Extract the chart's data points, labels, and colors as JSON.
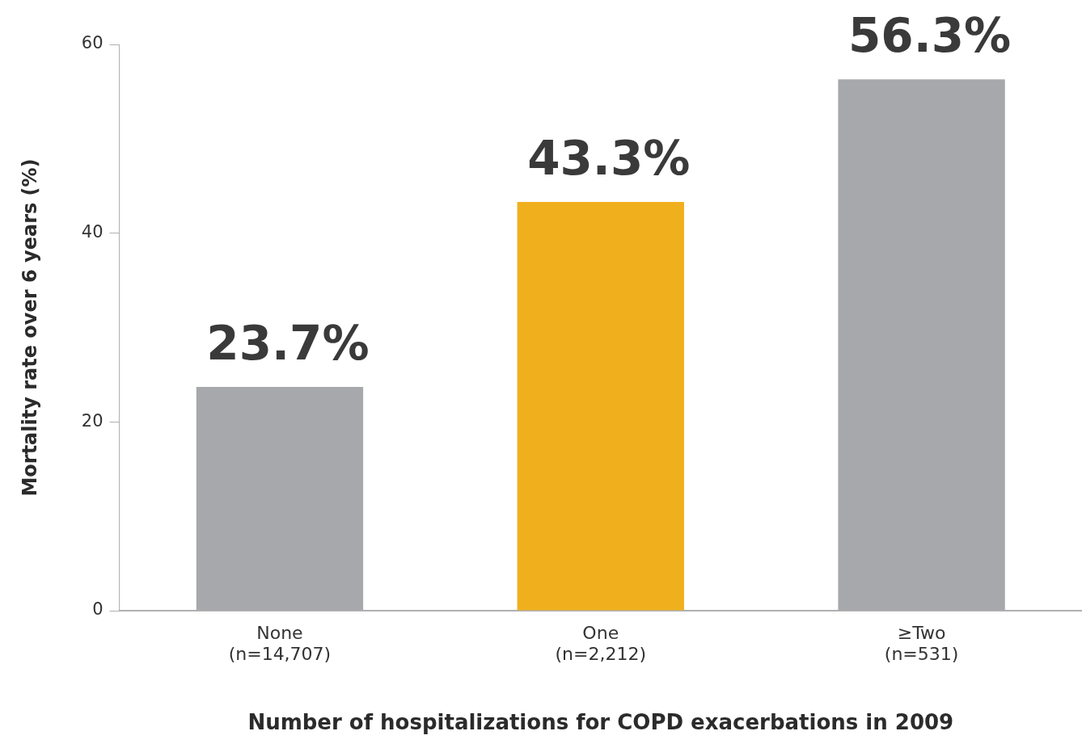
{
  "chart_data": {
    "type": "bar",
    "xlabel": "Number of hospitalizations for COPD exacerbations in 2009",
    "ylabel": "Mortality rate over 6 years (%)",
    "categories": [
      "None\n(n=14,707)",
      "One\n(n=2,212)",
      "≥Two\n(n=531)"
    ],
    "values": [
      23.7,
      43.3,
      56.3
    ],
    "colors": [
      "#a7a8ab",
      "#f0b01e",
      "#a7a8ab"
    ],
    "value_labels": [
      "23.7%",
      "43.3%",
      "56.3%"
    ],
    "ylim": [
      0,
      60
    ],
    "yticks": [
      0,
      20,
      40,
      60
    ],
    "grid": false,
    "legend": false
  }
}
